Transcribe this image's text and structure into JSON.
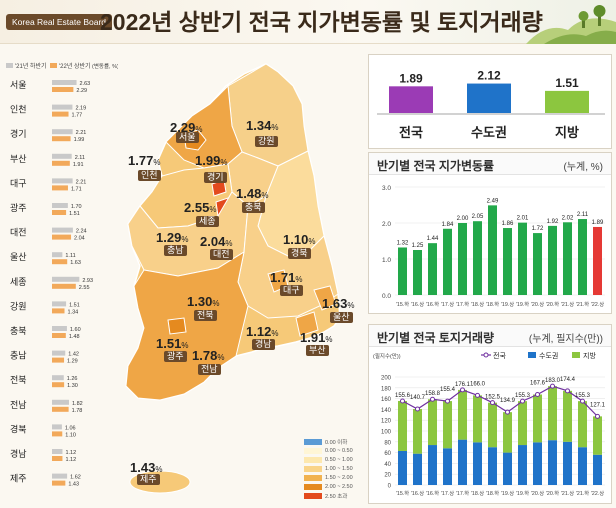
{
  "header": {
    "brand": "Korea Real Estate Board",
    "title": "2022년 상반기 전국 지가변동률 및 토지거래량"
  },
  "left_legend": {
    "prev": "'21년 하반기",
    "curr": "'22년 상반기",
    "unit": "(변동률, %)"
  },
  "regions": [
    {
      "name": "서울",
      "prev": "2.63",
      "curr": "2.29"
    },
    {
      "name": "인천",
      "prev": "2.19",
      "curr": "1.77"
    },
    {
      "name": "경기",
      "prev": "2.21",
      "curr": "1.99"
    },
    {
      "name": "부산",
      "prev": "2.11",
      "curr": "1.91"
    },
    {
      "name": "대구",
      "prev": "2.21",
      "curr": "1.71"
    },
    {
      "name": "광주",
      "prev": "1.70",
      "curr": "1.51"
    },
    {
      "name": "대전",
      "prev": "2.24",
      "curr": "2.04"
    },
    {
      "name": "울산",
      "prev": "1.11",
      "curr": "1.63"
    },
    {
      "name": "세종",
      "prev": "2.93",
      "curr": "2.55"
    },
    {
      "name": "강원",
      "prev": "1.51",
      "curr": "1.34"
    },
    {
      "name": "충북",
      "prev": "1.60",
      "curr": "1.48"
    },
    {
      "name": "충남",
      "prev": "1.42",
      "curr": "1.29"
    },
    {
      "name": "전북",
      "prev": "1.26",
      "curr": "1.30"
    },
    {
      "name": "전남",
      "prev": "1.82",
      "curr": "1.78"
    },
    {
      "name": "경북",
      "prev": "1.06",
      "curr": "1.10"
    },
    {
      "name": "경남",
      "prev": "1.12",
      "curr": "1.12"
    },
    {
      "name": "제주",
      "prev": "1.62",
      "curr": "1.43"
    }
  ],
  "map_labels": [
    {
      "name": "서울",
      "value": "2.29"
    },
    {
      "name": "인천",
      "value": "1.77"
    },
    {
      "name": "경기",
      "value": "1.99"
    },
    {
      "name": "강원",
      "value": "1.34"
    },
    {
      "name": "세종",
      "value": "2.55"
    },
    {
      "name": "충북",
      "value": "1.48"
    },
    {
      "name": "충남",
      "value": "1.29"
    },
    {
      "name": "대전",
      "value": "2.04"
    },
    {
      "name": "경북",
      "value": "1.10"
    },
    {
      "name": "대구",
      "value": "1.71"
    },
    {
      "name": "전북",
      "value": "1.30"
    },
    {
      "name": "울산",
      "value": "1.63"
    },
    {
      "name": "광주",
      "value": "1.51"
    },
    {
      "name": "전남",
      "value": "1.78"
    },
    {
      "name": "경남",
      "value": "1.12"
    },
    {
      "name": "부산",
      "value": "1.91"
    },
    {
      "name": "제주",
      "value": "1.43"
    }
  ],
  "map_percent_sign": "%",
  "map_legend": [
    {
      "label": "0.00 이하",
      "color": "#5b9bd5"
    },
    {
      "label": "0.00 ~ 0.50",
      "color": "#fff6d6"
    },
    {
      "label": "0.50 ~ 1.00",
      "color": "#fde8ae"
    },
    {
      "label": "1.00 ~ 1.50",
      "color": "#f9d489"
    },
    {
      "label": "1.50 ~ 2.00",
      "color": "#f1b24f"
    },
    {
      "label": "2.00 ~ 2.50",
      "color": "#e58a1f"
    },
    {
      "label": "2.50 초과",
      "color": "#e34a1d"
    }
  ],
  "summary": {
    "items": [
      {
        "label": "전국",
        "value": "1.89",
        "color": "#9b3bb5"
      },
      {
        "label": "수도권",
        "value": "2.12",
        "color": "#1f73c9"
      },
      {
        "label": "지방",
        "value": "1.51",
        "color": "#8cc63f"
      }
    ]
  },
  "change_panel": {
    "title": "반기별 전국 지가변동률",
    "unit": "(누계, %)"
  },
  "volume_panel": {
    "title": "반기별 전국 토지거래량",
    "unit": "(누계, 필지수(만))",
    "axis_unit": "(필지수(만))",
    "legend": [
      "전국",
      "수도권",
      "지방"
    ]
  },
  "chart_data": [
    {
      "type": "bar",
      "title": "",
      "categories": [
        "서울",
        "인천",
        "경기",
        "부산",
        "대구",
        "광주",
        "대전",
        "울산",
        "세종",
        "강원",
        "충북",
        "충남",
        "전북",
        "전남",
        "경북",
        "경남",
        "제주"
      ],
      "series": [
        {
          "name": "'21년 하반기",
          "values": [
            2.63,
            2.19,
            2.21,
            2.11,
            2.21,
            1.7,
            2.24,
            1.11,
            2.93,
            1.51,
            1.6,
            1.42,
            1.26,
            1.82,
            1.06,
            1.12,
            1.62
          ]
        },
        {
          "name": "'22년 상반기",
          "values": [
            2.29,
            1.77,
            1.99,
            1.91,
            1.71,
            1.51,
            2.04,
            1.63,
            2.55,
            1.34,
            1.48,
            1.29,
            1.3,
            1.78,
            1.1,
            1.12,
            1.43
          ]
        }
      ],
      "orientation": "horizontal",
      "ylabel": "(변동률, %)",
      "colors": [
        "#c9c9c9",
        "#f2a95a"
      ]
    },
    {
      "type": "bar",
      "categories": [
        "전국",
        "수도권",
        "지방"
      ],
      "values": [
        1.89,
        2.12,
        1.51
      ],
      "colors": [
        "#9b3bb5",
        "#1f73c9",
        "#8cc63f"
      ],
      "ylim": [
        0,
        2.5
      ]
    },
    {
      "type": "bar",
      "title": "반기별 전국 지가변동률",
      "categories": [
        "'15.하",
        "'16.상",
        "'16.하",
        "'17.상",
        "'17.하",
        "'18.상",
        "'18.하",
        "'19.상",
        "'19.하",
        "'20.상",
        "'20.하",
        "'21.상",
        "'21.하",
        "'22.상"
      ],
      "values": [
        1.32,
        1.25,
        1.44,
        1.84,
        2.0,
        2.05,
        2.49,
        1.86,
        2.01,
        1.72,
        1.92,
        2.02,
        2.11,
        1.89
      ],
      "colors": [
        "#22a84a",
        "#e53935"
      ],
      "yticks": [
        "0.0",
        "1.0",
        "2.0",
        "3.0"
      ],
      "ylim": [
        0,
        3
      ],
      "ylabel": "(누계, %)"
    },
    {
      "type": "bar",
      "title": "반기별 전국 토지거래량",
      "categories": [
        "'15.하",
        "'16.상",
        "'16.하",
        "'17.상",
        "'17.하",
        "'18.상",
        "'18.하",
        "'19.상",
        "'19.하",
        "'20.상",
        "'20.하",
        "'21.상",
        "'21.하",
        "'22.상"
      ],
      "series": [
        {
          "name": "전국",
          "values": [
            155.6,
            140.7,
            158.8,
            155.4,
            176.1,
            166.0,
            152.5,
            134.9,
            155.3,
            167.6,
            183.0,
            174.4,
            155.3,
            127.1
          ]
        },
        {
          "name": "수도권",
          "values": [
            63,
            58,
            74,
            68,
            84,
            79,
            70,
            60,
            74,
            79,
            83,
            80,
            70,
            56
          ]
        },
        {
          "name": "지방",
          "values": [
            92.6,
            82.7,
            84.8,
            87.4,
            92.1,
            87.0,
            82.5,
            74.9,
            81.3,
            88.6,
            100.0,
            94.4,
            85.3,
            71.1
          ]
        }
      ],
      "colors": [
        "#7030a0",
        "#1f73c9",
        "#8cc63f"
      ],
      "yticks": [
        "0",
        "20",
        "40",
        "60",
        "80",
        "100",
        "120",
        "140",
        "160",
        "180",
        "200"
      ],
      "ylim": [
        0,
        200
      ],
      "ylabel": "(필지수(만))"
    }
  ]
}
